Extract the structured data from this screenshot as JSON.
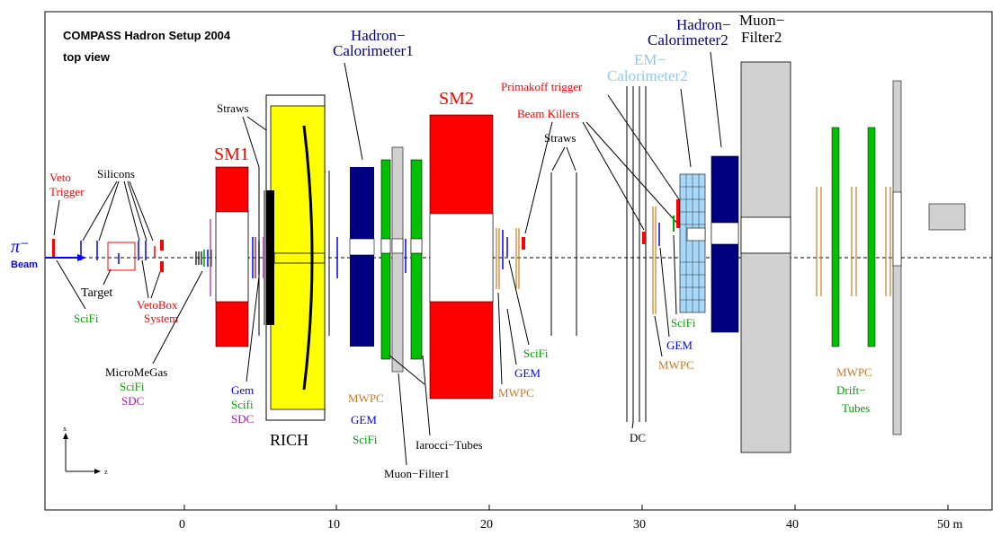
{
  "title": {
    "line1": "COMPASS Hadron Setup 2004",
    "line2": "top view"
  },
  "beam": {
    "symbol": "π⁻",
    "label": "Beam"
  },
  "axis": {
    "ticks": [
      "0",
      "10",
      "20",
      "30",
      "40",
      "50 m"
    ],
    "x": "x",
    "z": "z"
  },
  "labels": {
    "veto1": "Veto",
    "veto2": "Trigger",
    "silicons": "Silicons",
    "target": "Target",
    "vetobox1": "VetoBox",
    "vetobox2": "System",
    "scifi_left": "SciFi",
    "micromegas": "MicroMeGas",
    "mm_scifi": "SciFi",
    "mm_sdc": "SDC",
    "sm1": "SM1",
    "straws1": "Straws",
    "gem_a": "Gem",
    "gem_b": "Scifi",
    "gem_c": "SDC",
    "rich": "RICH",
    "hcal1_a": "Hadron−",
    "hcal1_b": "Calorimeter1",
    "mw1": "MWPC",
    "gem1": "GEM",
    "scifi1": "SciFi",
    "iarocci": "Iarocci−Tubes",
    "muonfilter1": "Muon−Filter1",
    "sm2": "SM2",
    "primakoff": "Primakoff trigger",
    "beamkillers": "Beam Killers",
    "straws2": "Straws",
    "scifi2": "SciFi",
    "gem2": "GEM",
    "mwpc2": "MWPC",
    "dc": "DC",
    "emcal_a": "EM−",
    "emcal_b": "Calorimeter2",
    "hcal2_a": "Hadron−",
    "hcal2_b": "Calorimeter2",
    "muon2_a": "Muon−",
    "muon2_b": "Filter2",
    "scifi3": "SciFi",
    "gem3": "GEM",
    "mwpc3": "MWPC",
    "mwpc4": "MWPC",
    "drift1": "Drift−",
    "drift2": "Tubes"
  },
  "colors": {
    "red": "#ff0000",
    "green": "#00b000",
    "blue": "#0000ff",
    "navy": "#000080",
    "orange": "#c87a20",
    "purple": "#a020a0",
    "lightblue": "#90c8f0",
    "yellow": "#ffff00",
    "grey": "#d0d0d0"
  }
}
